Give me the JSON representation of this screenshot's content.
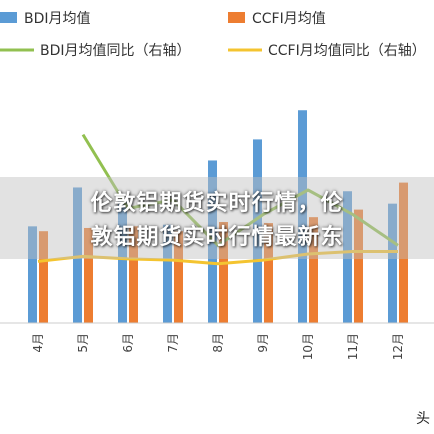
{
  "chart_data": {
    "type": "bar",
    "categories": [
      "4月",
      "5月",
      "6月",
      "7月",
      "8月",
      "9月",
      "10月",
      "11月",
      "12月"
    ],
    "y_right_label": "",
    "series": [
      {
        "name": "BDI月均值",
        "kind": "bar",
        "color": "#5b9bd5",
        "values": [
          1790,
          2510,
          2270,
          1820,
          3010,
          3400,
          3940,
          2440,
          2210
        ]
      },
      {
        "name": "CCFI月均值",
        "kind": "bar",
        "color": "#ed7d31",
        "values": [
          1700,
          1760,
          1790,
          1700,
          1870,
          1850,
          1960,
          2100,
          2600
        ]
      },
      {
        "name": "BDI月均值同比（右轴）",
        "kind": "line",
        "color": "#92c050",
        "values": [
          null,
          0.95,
          0.35,
          0.42,
          0.05,
          0.3,
          0.5,
          0.3,
          0.05
        ]
      },
      {
        "name": "CCFI月均值同比（右轴）",
        "kind": "line",
        "color": "#f4c430",
        "values": [
          -0.08,
          -0.04,
          -0.06,
          -0.07,
          -0.1,
          -0.07,
          -0.02,
          0.0,
          0.0
        ]
      }
    ],
    "ylim_left": [
      0,
      4500
    ],
    "ylim_right": [
      -0.5,
      1.5
    ],
    "grid": false,
    "legend": "top"
  },
  "overlay": {
    "line1": "伦敦铝期货实时行情，伦",
    "line2": "敦铝期货实时行情最新东"
  },
  "corner_text": "头"
}
